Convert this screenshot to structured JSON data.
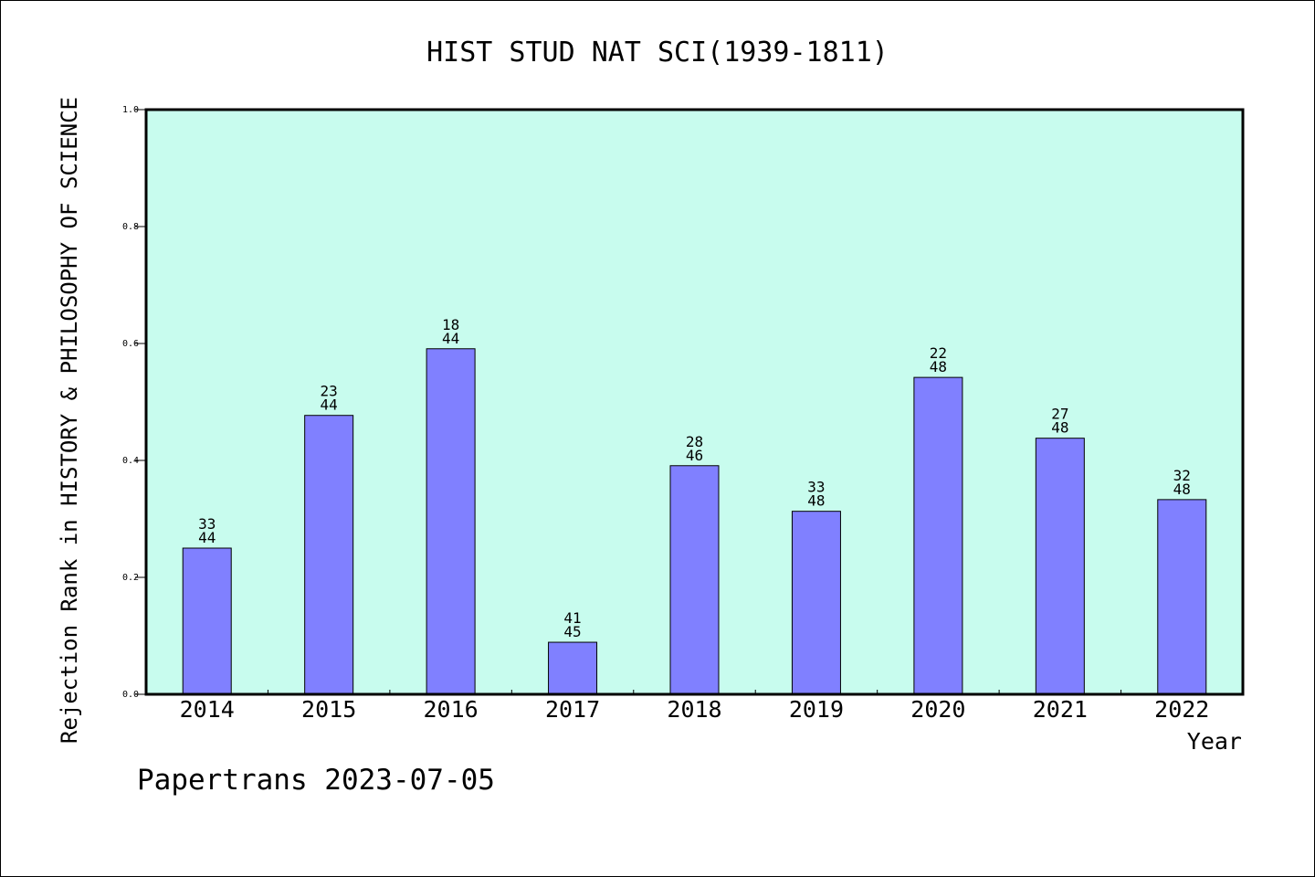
{
  "chart_data": {
    "type": "bar",
    "title": "HIST STUD NAT SCI(1939-1811)",
    "xlabel": "Year",
    "ylabel": "Rejection Rank in HISTORY & PHILOSOPHY OF SCIENCE",
    "ylim": [
      0,
      1.0
    ],
    "yticks": [
      "0.0",
      "0.2",
      "0.4",
      "0.6",
      "0.8",
      "1.0"
    ],
    "categories": [
      "2014",
      "2015",
      "2016",
      "2017",
      "2018",
      "2019",
      "2020",
      "2021",
      "2022"
    ],
    "values": [
      0.25,
      0.477,
      0.591,
      0.089,
      0.391,
      0.313,
      0.542,
      0.438,
      0.333
    ],
    "labels_top": [
      "33",
      "23",
      "18",
      "41",
      "28",
      "33",
      "22",
      "27",
      "32"
    ],
    "labels_bottom": [
      "44",
      "44",
      "44",
      "45",
      "46",
      "48",
      "48",
      "48",
      "48"
    ],
    "plot_background": "#c8fcee",
    "bar_color": "#8080ff",
    "grid": false
  },
  "footer": {
    "text": "Papertrans 2023-07-05"
  }
}
